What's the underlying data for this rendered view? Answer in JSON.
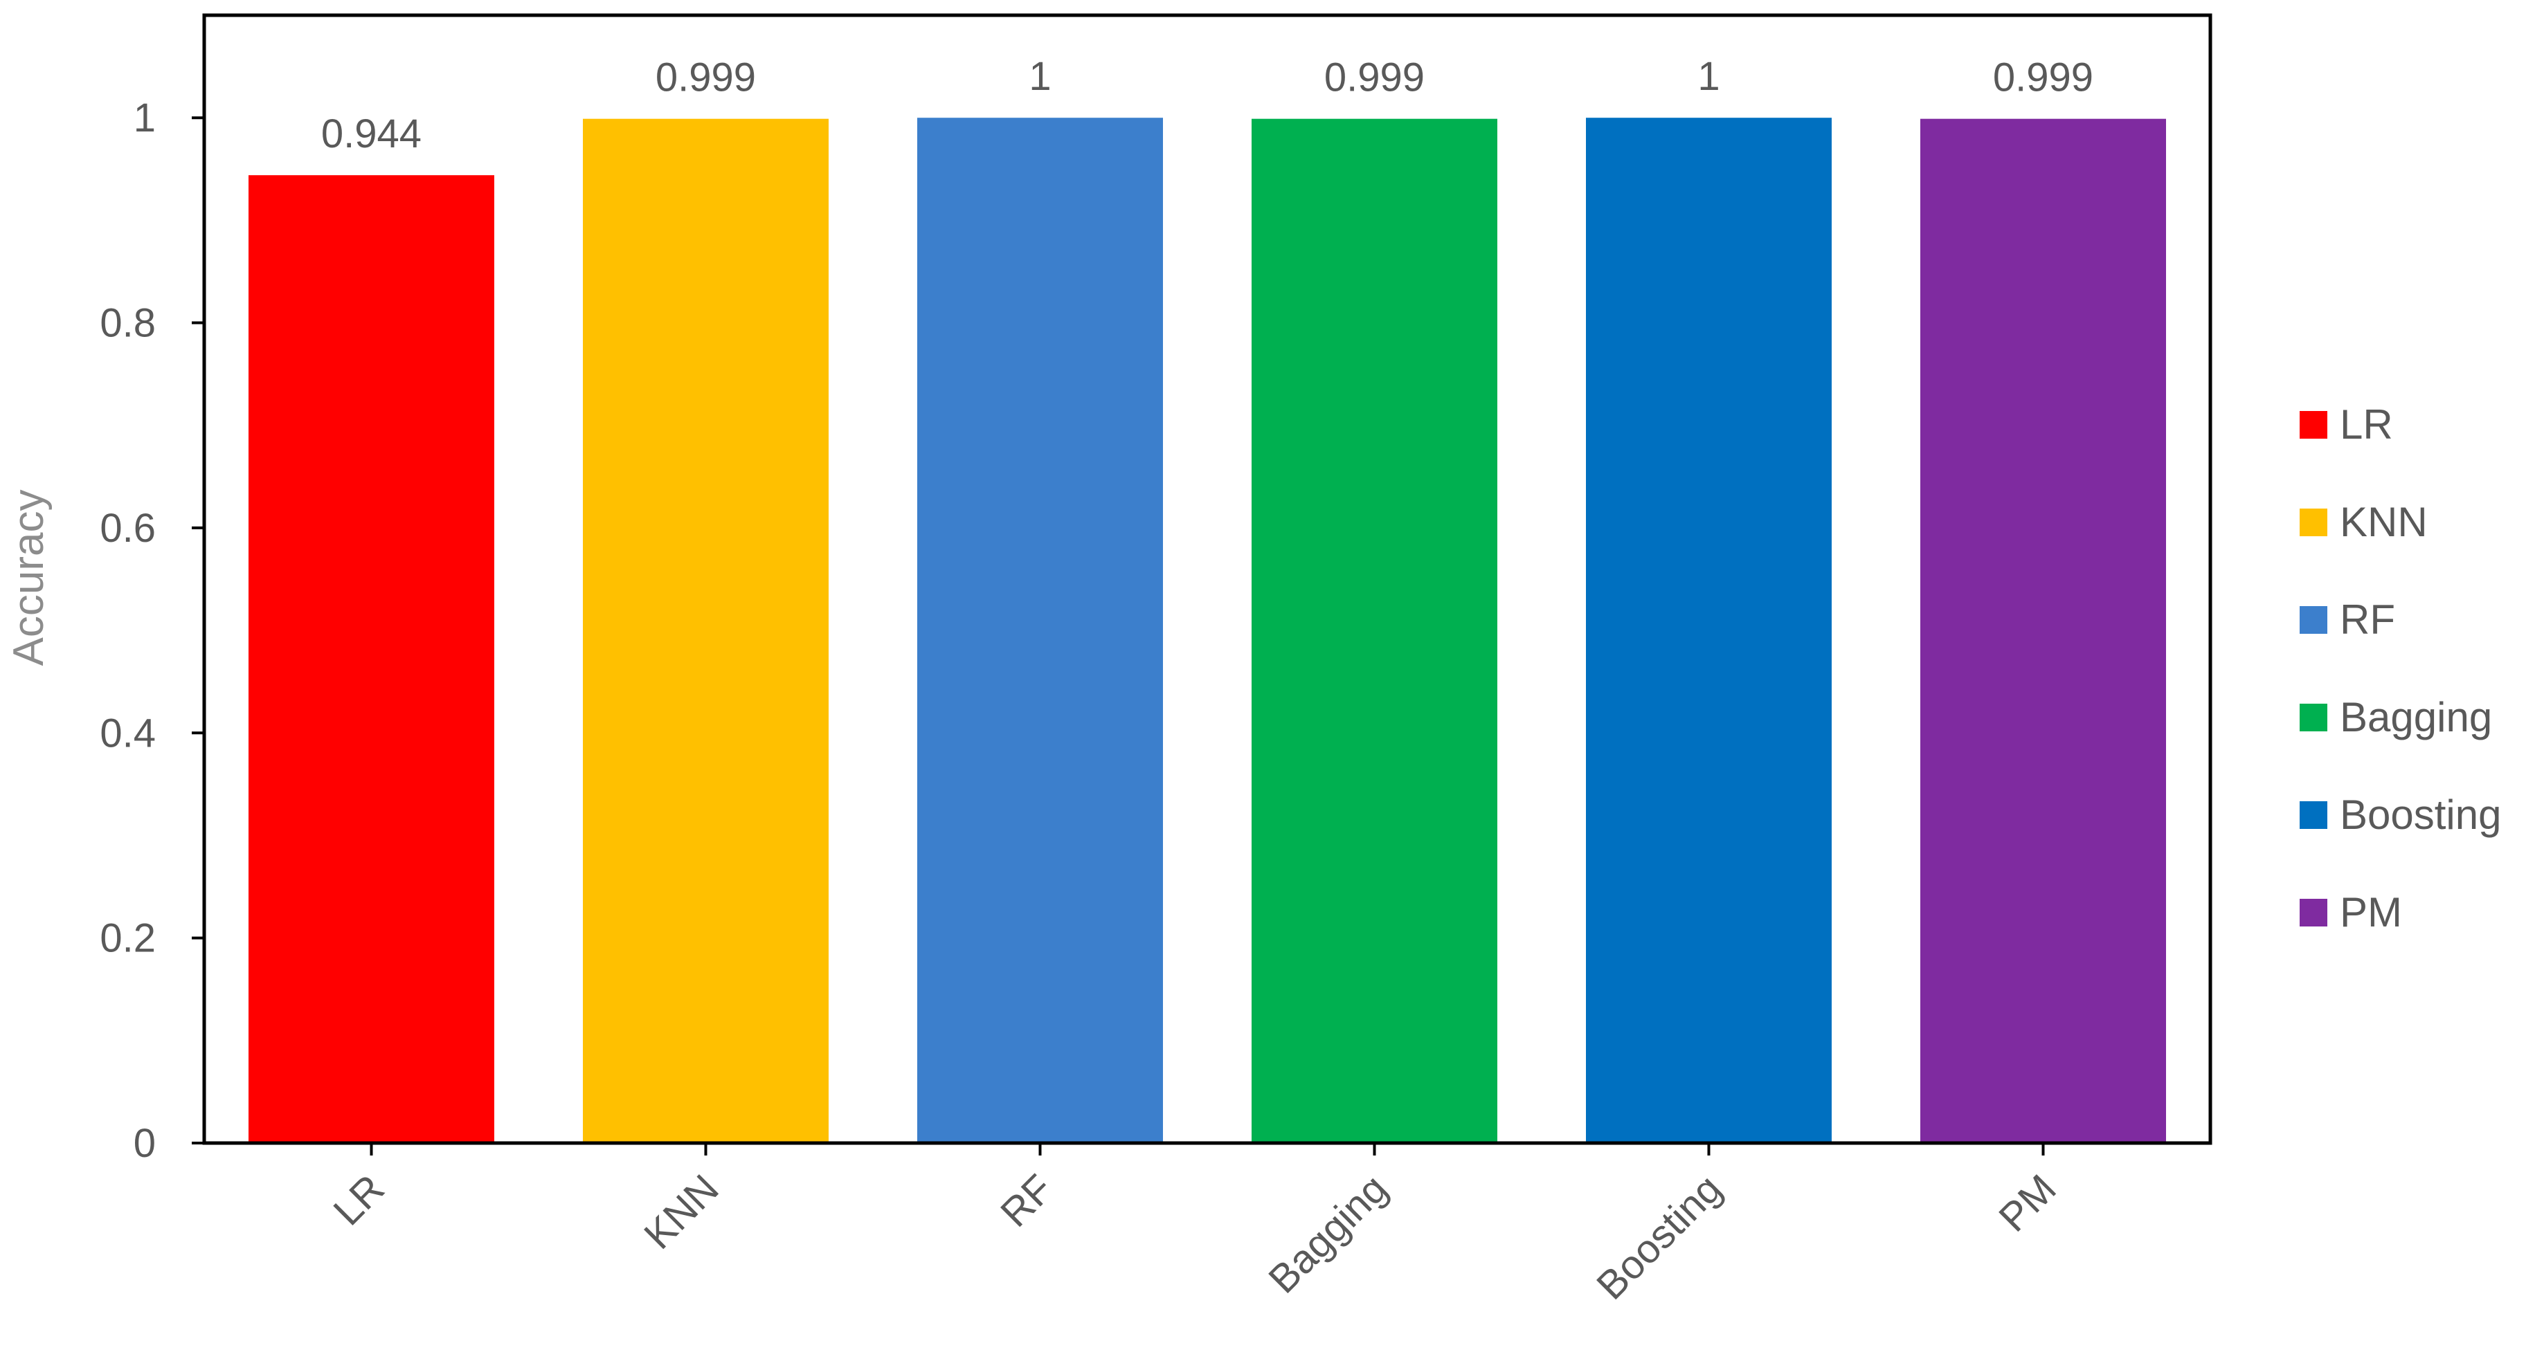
{
  "chart_data": {
    "type": "bar",
    "categories": [
      "LR",
      "KNN",
      "RF",
      "Bagging",
      "Boosting",
      "PM"
    ],
    "values": [
      0.944,
      0.999,
      1,
      0.999,
      1,
      0.999
    ],
    "data_labels": [
      "0.944",
      "0.999",
      "1",
      "0.999",
      "1",
      "0.999"
    ],
    "colors": [
      "#ff0000",
      "#ffc000",
      "#3c7fcc",
      "#00b050",
      "#0070c0",
      "#7f2ba0"
    ],
    "title": "",
    "xlabel": "",
    "ylabel": "Accuracy",
    "ylim": [
      0,
      1.1
    ],
    "yticks": [
      0,
      0.2,
      0.4,
      0.6,
      0.8,
      1
    ],
    "ytick_labels": [
      "0",
      "0.2",
      "0.4",
      "0.6",
      "0.8",
      "1"
    ],
    "legend": {
      "position": "right",
      "entries": [
        "LR",
        "KNN",
        "RF",
        "Bagging",
        "Boosting",
        "PM"
      ]
    },
    "grid": false
  }
}
